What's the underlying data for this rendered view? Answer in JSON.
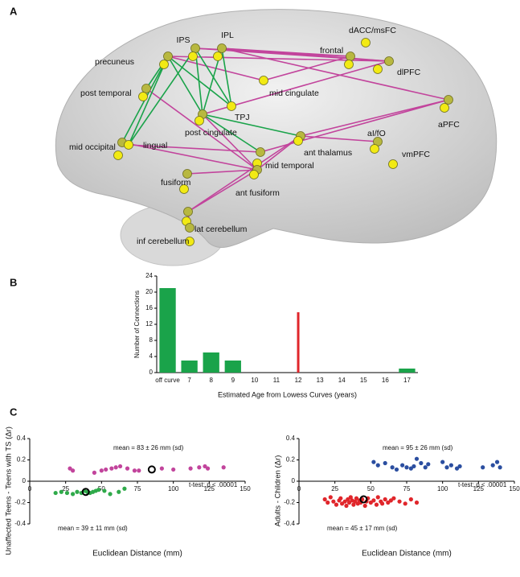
{
  "panel_labels": [
    "A",
    "B",
    "C"
  ],
  "brain_labels": [
    "IPS",
    "IPL",
    "precuneus",
    "frontal",
    "dACC/msFC",
    "dlPFC",
    "post temporal",
    "mid cingulate",
    "TPJ",
    "aPFC",
    "post cingulate",
    "aI/fO",
    "mid occipital",
    "lingual",
    "ant thalamus",
    "vmPFC",
    "mid temporal",
    "fusiform",
    "ant fusiform",
    "lat cerebellum",
    "inf cerebellum"
  ],
  "chart_data": [
    {
      "type": "bar",
      "categories": [
        "off curve",
        "7",
        "8",
        "9",
        "10",
        "11",
        "12",
        "13",
        "14",
        "15",
        "16",
        "17"
      ],
      "values": [
        21,
        3,
        5,
        3,
        0,
        0,
        15,
        0,
        0,
        0,
        0,
        1
      ],
      "color": "#1aa34a",
      "colors": [
        "#1aa34a",
        "#1aa34a",
        "#1aa34a",
        "#1aa34a",
        "#1aa34a",
        "#1aa34a",
        "#e0262b",
        "#1aa34a",
        "#1aa34a",
        "#1aa34a",
        "#1aa34a",
        "#1aa34a"
      ],
      "ylim": [
        0,
        24
      ],
      "yticks": [
        0,
        4,
        8,
        12,
        16,
        20,
        24
      ],
      "ylabel": "Number of Connections",
      "xlabel": "Estimated Age from Lowess Curves (years)"
    },
    {
      "type": "scatter",
      "ylabel": "Unaffected Teens - Teens with TS (Δr)",
      "xlabel": "Euclidean Distance (mm)",
      "xlim": [
        0,
        150
      ],
      "xticks": [
        0,
        25,
        50,
        75,
        100,
        125,
        150
      ],
      "ylim": [
        -0.4,
        0.4
      ],
      "yticks": [
        0.4,
        0.2,
        0,
        -0.2,
        -0.4
      ],
      "annotations": [
        "mean = 83 ± 26 mm (sd)",
        "mean = 39 ± 11 mm (sd)",
        "t-test: p < .00001"
      ],
      "series": [
        {
          "color": "#c2449c",
          "x": [
            28,
            30,
            45,
            50,
            53,
            57,
            60,
            63,
            68,
            73,
            76,
            92,
            100,
            112,
            118,
            122,
            124,
            135
          ],
          "values": [
            0.12,
            0.1,
            0.08,
            0.1,
            0.11,
            0.12,
            0.13,
            0.14,
            0.12,
            0.1,
            0.1,
            0.12,
            0.11,
            0.12,
            0.13,
            0.14,
            0.12,
            0.13
          ]
        },
        {
          "color": "#2faa4a",
          "x": [
            18,
            22,
            26,
            30,
            33,
            36,
            38,
            40,
            42,
            44,
            46,
            48,
            52,
            56,
            62,
            66
          ],
          "values": [
            -0.11,
            -0.1,
            -0.11,
            -0.12,
            -0.1,
            -0.11,
            -0.09,
            -0.1,
            -0.11,
            -0.1,
            -0.09,
            -0.08,
            -0.09,
            -0.12,
            -0.1,
            -0.07
          ]
        },
        {
          "color": "#000000",
          "marker": "open",
          "x": [
            85,
            39
          ],
          "values": [
            0.11,
            -0.1
          ]
        }
      ]
    },
    {
      "type": "scatter",
      "ylabel": "Adults - Children (Δr)",
      "xlabel": "Euclidean Distance (mm)",
      "xlim": [
        0,
        150
      ],
      "xticks": [
        0,
        25,
        50,
        75,
        100,
        125,
        150
      ],
      "ylim": [
        -0.4,
        0.4
      ],
      "yticks": [
        0.4,
        0.2,
        0,
        -0.2,
        -0.4
      ],
      "annotations": [
        "mean = 95 ± 26 mm (sd)",
        "mean = 45 ± 17 mm (sd)",
        "t-test: p < .00001"
      ],
      "series": [
        {
          "color": "#2b4ea0",
          "x": [
            52,
            55,
            60,
            65,
            68,
            72,
            75,
            78,
            80,
            82,
            85,
            88,
            90,
            100,
            103,
            106,
            110,
            112,
            128,
            135,
            138,
            140
          ],
          "values": [
            0.18,
            0.15,
            0.17,
            0.13,
            0.11,
            0.15,
            0.13,
            0.12,
            0.14,
            0.21,
            0.17,
            0.13,
            0.16,
            0.18,
            0.13,
            0.15,
            0.12,
            0.14,
            0.13,
            0.15,
            0.18,
            0.13
          ]
        },
        {
          "color": "#e0262b",
          "x": [
            18,
            20,
            22,
            24,
            26,
            28,
            29,
            30,
            32,
            33,
            34,
            35,
            36,
            37,
            38,
            39,
            40,
            41,
            42,
            43,
            44,
            46,
            47,
            48,
            50,
            52,
            54,
            55,
            57,
            58,
            60,
            62,
            64,
            66,
            70,
            74,
            78,
            82
          ],
          "values": [
            -0.17,
            -0.2,
            -0.15,
            -0.19,
            -0.22,
            -0.18,
            -0.16,
            -0.21,
            -0.19,
            -0.23,
            -0.17,
            -0.2,
            -0.15,
            -0.18,
            -0.22,
            -0.19,
            -0.16,
            -0.21,
            -0.18,
            -0.2,
            -0.17,
            -0.23,
            -0.19,
            -0.16,
            -0.2,
            -0.18,
            -0.22,
            -0.15,
            -0.19,
            -0.21,
            -0.17,
            -0.2,
            -0.18,
            -0.16,
            -0.19,
            -0.21,
            -0.17,
            -0.2
          ]
        },
        {
          "color": "#000000",
          "marker": "open",
          "x": [
            45
          ],
          "values": [
            -0.17
          ]
        }
      ]
    }
  ]
}
